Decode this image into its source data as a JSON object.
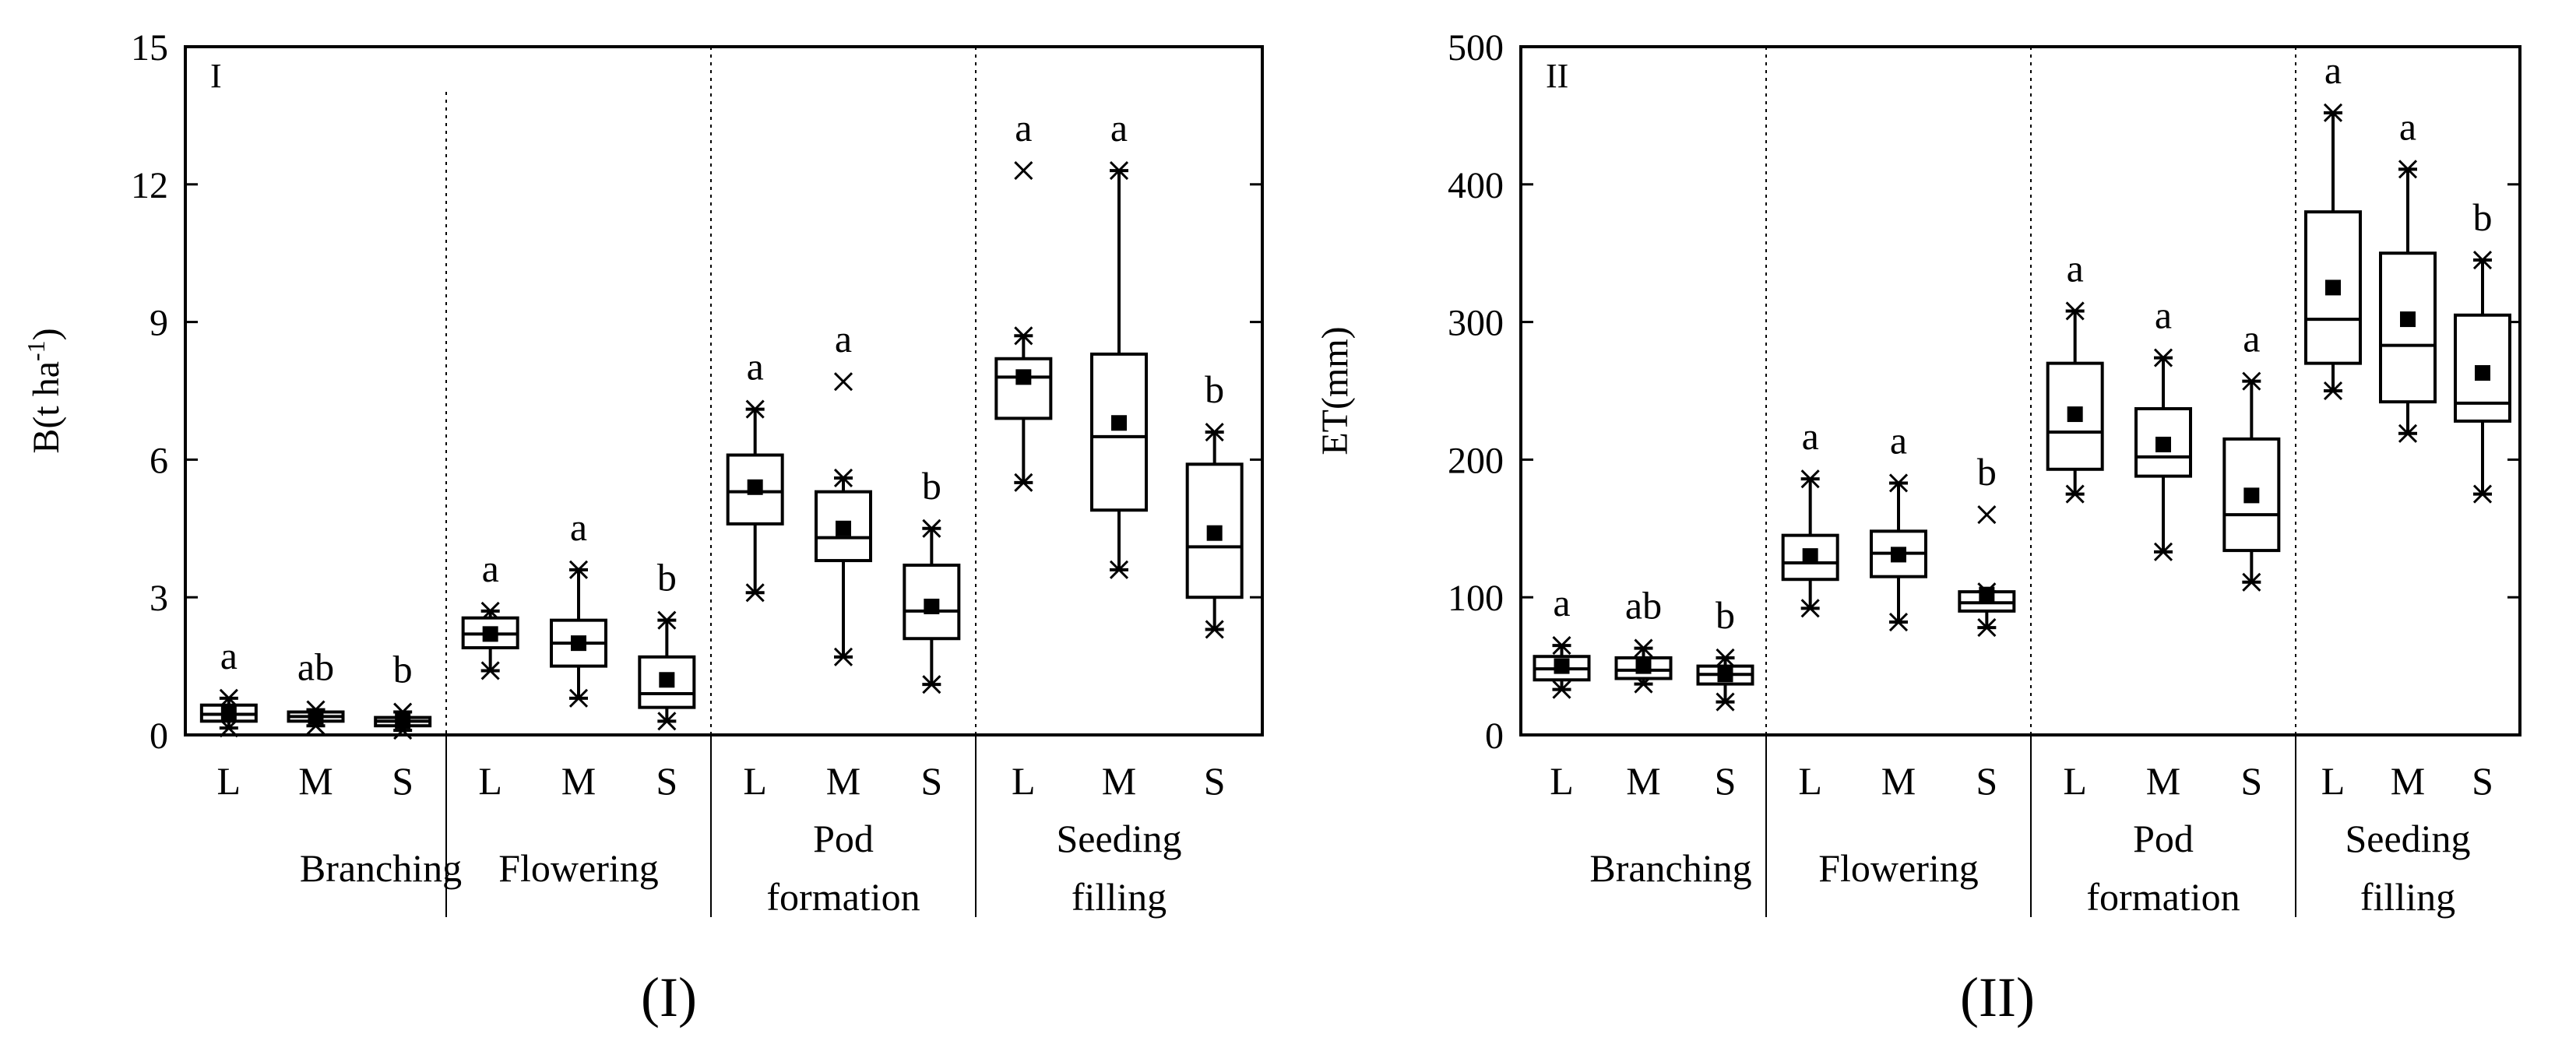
{
  "chart_data": [
    {
      "type": "boxplot",
      "panel_label": "I",
      "caption": "(I)",
      "ylabel": "B(t ha",
      "ylabel_sup": "-1",
      "ylabel_close": ")",
      "ylim": [
        0,
        15
      ],
      "yticks": [
        "0",
        "3",
        "6",
        "9",
        "12",
        "15"
      ],
      "stages": [
        {
          "line1": "Branching",
          "line2": ""
        },
        {
          "line1": "Flowering",
          "line2": ""
        },
        {
          "line1": "Pod",
          "line2": "formation"
        },
        {
          "line1": "Seeding",
          "line2": "filling"
        }
      ],
      "groups": [
        "L",
        "M",
        "S"
      ],
      "boxes": [
        {
          "stage": 0,
          "group": "L",
          "min": 0.15,
          "q1": 0.3,
          "median": 0.45,
          "q3": 0.65,
          "max": 0.8,
          "mean": 0.45,
          "outliers": [],
          "letter": "a"
        },
        {
          "stage": 0,
          "group": "M",
          "min": 0.2,
          "q1": 0.3,
          "median": 0.4,
          "q3": 0.5,
          "max": 0.55,
          "mean": 0.4,
          "outliers": [],
          "letter": "ab"
        },
        {
          "stage": 0,
          "group": "S",
          "min": 0.1,
          "q1": 0.2,
          "median": 0.3,
          "q3": 0.38,
          "max": 0.5,
          "mean": 0.3,
          "outliers": [],
          "letter": "b"
        },
        {
          "stage": 1,
          "group": "L",
          "min": 1.4,
          "q1": 1.9,
          "median": 2.2,
          "q3": 2.55,
          "max": 2.7,
          "mean": 2.2,
          "outliers": [],
          "letter": "a"
        },
        {
          "stage": 1,
          "group": "M",
          "min": 0.8,
          "q1": 1.5,
          "median": 2.0,
          "q3": 2.5,
          "max": 3.6,
          "mean": 2.0,
          "outliers": [],
          "letter": "a"
        },
        {
          "stage": 1,
          "group": "S",
          "min": 0.3,
          "q1": 0.6,
          "median": 0.9,
          "q3": 1.7,
          "max": 2.5,
          "mean": 1.2,
          "outliers": [],
          "letter": "b"
        },
        {
          "stage": 2,
          "group": "L",
          "min": 3.1,
          "q1": 4.6,
          "median": 5.3,
          "q3": 6.1,
          "max": 7.1,
          "mean": 5.4,
          "outliers": [],
          "letter": "a"
        },
        {
          "stage": 2,
          "group": "M",
          "min": 1.7,
          "q1": 3.8,
          "median": 4.3,
          "q3": 5.3,
          "max": 5.6,
          "mean": 4.5,
          "outliers": [
            7.7
          ],
          "letter": "a"
        },
        {
          "stage": 2,
          "group": "S",
          "min": 1.1,
          "q1": 2.1,
          "median": 2.7,
          "q3": 3.7,
          "max": 4.5,
          "mean": 2.8,
          "outliers": [],
          "letter": "b"
        },
        {
          "stage": 3,
          "group": "L",
          "min": 5.5,
          "q1": 6.9,
          "median": 7.8,
          "q3": 8.2,
          "max": 8.7,
          "mean": 7.8,
          "outliers": [
            12.3
          ],
          "letter": "a"
        },
        {
          "stage": 3,
          "group": "M",
          "min": 3.6,
          "q1": 4.9,
          "median": 6.5,
          "q3": 8.3,
          "max": 12.3,
          "mean": 6.8,
          "outliers": [],
          "letter": "a"
        },
        {
          "stage": 3,
          "group": "S",
          "min": 2.3,
          "q1": 3.0,
          "median": 4.1,
          "q3": 5.9,
          "max": 6.6,
          "mean": 4.4,
          "outliers": [],
          "letter": "b"
        }
      ]
    },
    {
      "type": "boxplot",
      "panel_label": "II",
      "caption": "(II)",
      "ylabel": "ET(mm)",
      "ylabel_sup": "",
      "ylabel_close": "",
      "ylim": [
        0,
        500
      ],
      "yticks": [
        "0",
        "100",
        "200",
        "300",
        "400",
        "500"
      ],
      "stages": [
        {
          "line1": "Branching",
          "line2": ""
        },
        {
          "line1": "Flowering",
          "line2": ""
        },
        {
          "line1": "Pod",
          "line2": "formation"
        },
        {
          "line1": "Seeding",
          "line2": "filling"
        }
      ],
      "groups": [
        "L",
        "M",
        "S"
      ],
      "boxes": [
        {
          "stage": 0,
          "group": "L",
          "min": 33,
          "q1": 40,
          "median": 48,
          "q3": 57,
          "max": 65,
          "mean": 50,
          "outliers": [],
          "letter": "a"
        },
        {
          "stage": 0,
          "group": "M",
          "min": 37,
          "q1": 41,
          "median": 47,
          "q3": 56,
          "max": 63,
          "mean": 50,
          "outliers": [],
          "letter": "ab"
        },
        {
          "stage": 0,
          "group": "S",
          "min": 24,
          "q1": 37,
          "median": 44,
          "q3": 50,
          "max": 56,
          "mean": 44,
          "outliers": [],
          "letter": "b"
        },
        {
          "stage": 1,
          "group": "L",
          "min": 92,
          "q1": 113,
          "median": 125,
          "q3": 145,
          "max": 186,
          "mean": 130,
          "outliers": [],
          "letter": "a"
        },
        {
          "stage": 1,
          "group": "M",
          "min": 82,
          "q1": 115,
          "median": 132,
          "q3": 148,
          "max": 183,
          "mean": 131,
          "outliers": [],
          "letter": "a"
        },
        {
          "stage": 1,
          "group": "S",
          "min": 78,
          "q1": 90,
          "median": 96,
          "q3": 104,
          "max": 104,
          "mean": 102,
          "outliers": [
            160
          ],
          "letter": "b"
        },
        {
          "stage": 2,
          "group": "L",
          "min": 175,
          "q1": 193,
          "median": 220,
          "q3": 270,
          "max": 308,
          "mean": 233,
          "outliers": [],
          "letter": "a"
        },
        {
          "stage": 2,
          "group": "M",
          "min": 133,
          "q1": 188,
          "median": 202,
          "q3": 237,
          "max": 274,
          "mean": 211,
          "outliers": [],
          "letter": "a"
        },
        {
          "stage": 2,
          "group": "S",
          "min": 111,
          "q1": 134,
          "median": 160,
          "q3": 215,
          "max": 257,
          "mean": 174,
          "outliers": [],
          "letter": "a"
        },
        {
          "stage": 3,
          "group": "L",
          "min": 250,
          "q1": 270,
          "median": 302,
          "q3": 380,
          "max": 452,
          "mean": 325,
          "outliers": [],
          "letter": "a"
        },
        {
          "stage": 3,
          "group": "M",
          "min": 219,
          "q1": 242,
          "median": 283,
          "q3": 350,
          "max": 411,
          "mean": 302,
          "outliers": [],
          "letter": "a"
        },
        {
          "stage": 3,
          "group": "S",
          "min": 175,
          "q1": 228,
          "median": 241,
          "q3": 305,
          "max": 345,
          "mean": 263,
          "outliers": [],
          "letter": "b"
        }
      ]
    }
  ]
}
